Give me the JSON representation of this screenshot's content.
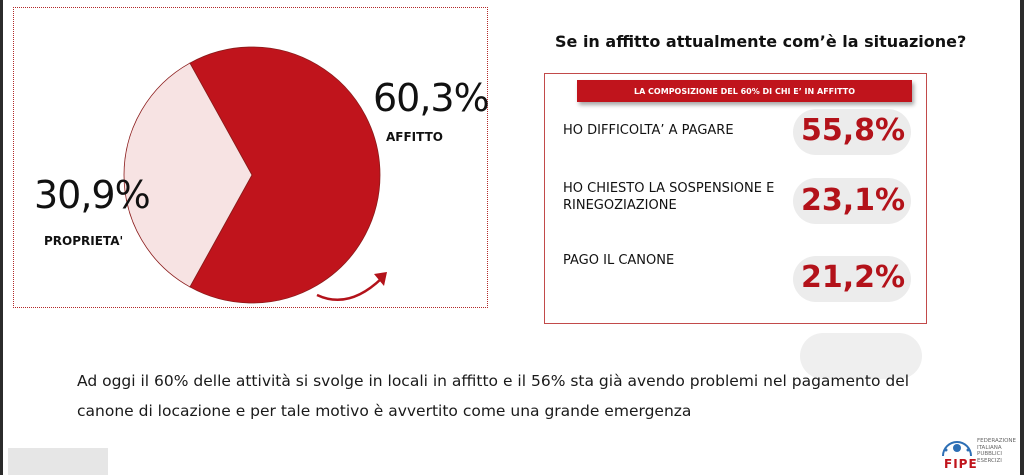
{
  "chart_data": {
    "type": "pie",
    "slices": [
      {
        "label": "AFFITTO",
        "value": 60.3,
        "display": "60,3%",
        "color": "#c0141c"
      },
      {
        "label": "PROPRIETA'",
        "value": 30.9,
        "display": "30,9%",
        "color": "#f7e3e3"
      }
    ]
  },
  "panel": {
    "question": "Se in affitto attualmente com’è la situazione?",
    "header": "LA COMPOSIZIONE DEL 60% DI CHI E’ IN AFFITTO",
    "rows": [
      {
        "label": "HO DIFFICOLTA’ A PAGARE",
        "value": "55,8%"
      },
      {
        "label": "HO CHIESTO LA SOSPENSIONE E RINEGOZIAZIONE",
        "value": "23,1%"
      },
      {
        "label": "PAGO IL CANONE",
        "value": "21,2%"
      }
    ]
  },
  "summary": {
    "line1": "Ad oggi il 60% delle attività si svolge in locali in affitto e il 56% sta già avendo problemi nel pagamento del",
    "line2": "canone di locazione e per tale motivo è avvertito come una grande emergenza"
  },
  "logo": {
    "word": "FIPE",
    "lines": [
      "FEDERAZIONE",
      "ITALIANA",
      "PUBBLICI",
      "ESERCIZI"
    ]
  },
  "colors": {
    "accent": "#c0141c",
    "light": "#f7e3e3",
    "arrow": "#b3121a"
  }
}
